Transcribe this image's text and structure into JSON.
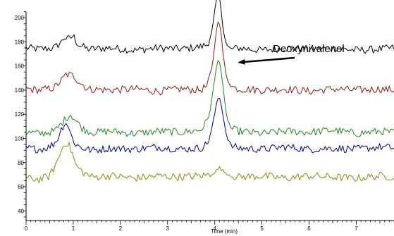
{
  "chart_data": {
    "type": "line",
    "title": "",
    "xlabel": "Time (min)",
    "ylabel": "",
    "xlim": [
      0,
      7.8
    ],
    "ylim": [
      32,
      210
    ],
    "x_ticks": [
      0,
      1,
      2,
      3,
      4,
      5,
      6,
      7
    ],
    "y_ticks": [
      40,
      60,
      80,
      100,
      120,
      140,
      160,
      180,
      200
    ],
    "grid": false,
    "legend": "none",
    "series": [
      {
        "color": "#000000",
        "x": [
          0,
          0.3,
          0.6,
          0.75,
          0.8,
          0.9,
          1.0,
          1.1,
          1.3,
          1.8,
          2.3,
          2.8,
          3.3,
          3.7,
          3.85,
          3.95,
          4.02,
          4.08,
          4.12,
          4.18,
          4.25,
          4.35,
          4.5,
          5.0,
          5.5,
          6.0,
          6.5,
          7.0,
          7.5,
          7.8
        ],
        "y": [
          175,
          174,
          175,
          180,
          184,
          182,
          185,
          178,
          174,
          175,
          173,
          175,
          174,
          176,
          178,
          190,
          212,
          220,
          212,
          190,
          177,
          174,
          175,
          173,
          175,
          174,
          175,
          173,
          174,
          175
        ]
      },
      {
        "color": "#8b1a1a",
        "x": [
          0,
          0.3,
          0.6,
          0.75,
          0.85,
          1.0,
          1.1,
          1.3,
          1.8,
          2.3,
          2.8,
          3.3,
          3.7,
          3.85,
          3.95,
          4.02,
          4.08,
          4.12,
          4.18,
          4.25,
          4.35,
          4.5,
          5.0,
          5.5,
          6.0,
          6.5,
          7.0,
          7.5,
          7.8
        ],
        "y": [
          141,
          140,
          142,
          148,
          153,
          152,
          148,
          141,
          140,
          141,
          139,
          141,
          140,
          144,
          160,
          185,
          200,
          192,
          168,
          150,
          143,
          141,
          140,
          141,
          139,
          141,
          140,
          141,
          140
        ]
      },
      {
        "color": "#1a8a1a",
        "x": [
          0,
          0.3,
          0.6,
          0.75,
          0.85,
          0.95,
          1.05,
          1.2,
          1.4,
          1.8,
          2.3,
          2.8,
          3.3,
          3.7,
          3.85,
          3.95,
          4.02,
          4.08,
          4.12,
          4.18,
          4.25,
          4.35,
          4.5,
          5.0,
          5.5,
          6.0,
          6.5,
          7.0,
          7.5,
          7.8
        ],
        "y": [
          105,
          104,
          106,
          112,
          117,
          120,
          115,
          108,
          105,
          106,
          104,
          106,
          105,
          107,
          115,
          135,
          155,
          168,
          160,
          140,
          118,
          108,
          106,
          104,
          106,
          105,
          107,
          104,
          106,
          105
        ]
      },
      {
        "color": "#00008b",
        "x": [
          0,
          0.3,
          0.5,
          0.65,
          0.75,
          0.82,
          0.88,
          0.95,
          1.05,
          1.2,
          1.4,
          1.8,
          2.3,
          2.8,
          3.3,
          3.7,
          3.85,
          3.95,
          4.02,
          4.08,
          4.12,
          4.18,
          4.25,
          4.35,
          4.5,
          5.0,
          5.5,
          6.0,
          6.5,
          7.0,
          7.5,
          7.8
        ],
        "y": [
          92,
          91,
          93,
          98,
          108,
          113,
          112,
          103,
          95,
          92,
          90,
          92,
          91,
          93,
          91,
          92,
          96,
          110,
          125,
          135,
          132,
          118,
          102,
          94,
          92,
          91,
          93,
          91,
          92,
          91,
          93,
          92
        ]
      },
      {
        "color": "#8b8b00",
        "x": [
          0,
          0.3,
          0.5,
          0.65,
          0.75,
          0.82,
          0.9,
          0.98,
          1.05,
          1.2,
          1.4,
          1.8,
          2.3,
          2.8,
          3.3,
          3.7,
          3.9,
          4.0,
          4.1,
          4.2,
          4.35,
          4.5,
          5.0,
          5.5,
          6.0,
          6.5,
          7.0,
          7.5,
          7.8
        ],
        "y": [
          67,
          66,
          69,
          80,
          90,
          97,
          95,
          88,
          78,
          72,
          68,
          69,
          67,
          69,
          68,
          69,
          70,
          72,
          76,
          72,
          69,
          68,
          69,
          67,
          69,
          68,
          67,
          69,
          68
        ]
      }
    ],
    "annotations": [
      {
        "text": "Deoxynivalenol",
        "x": 4.52,
        "y": 163
      }
    ]
  }
}
